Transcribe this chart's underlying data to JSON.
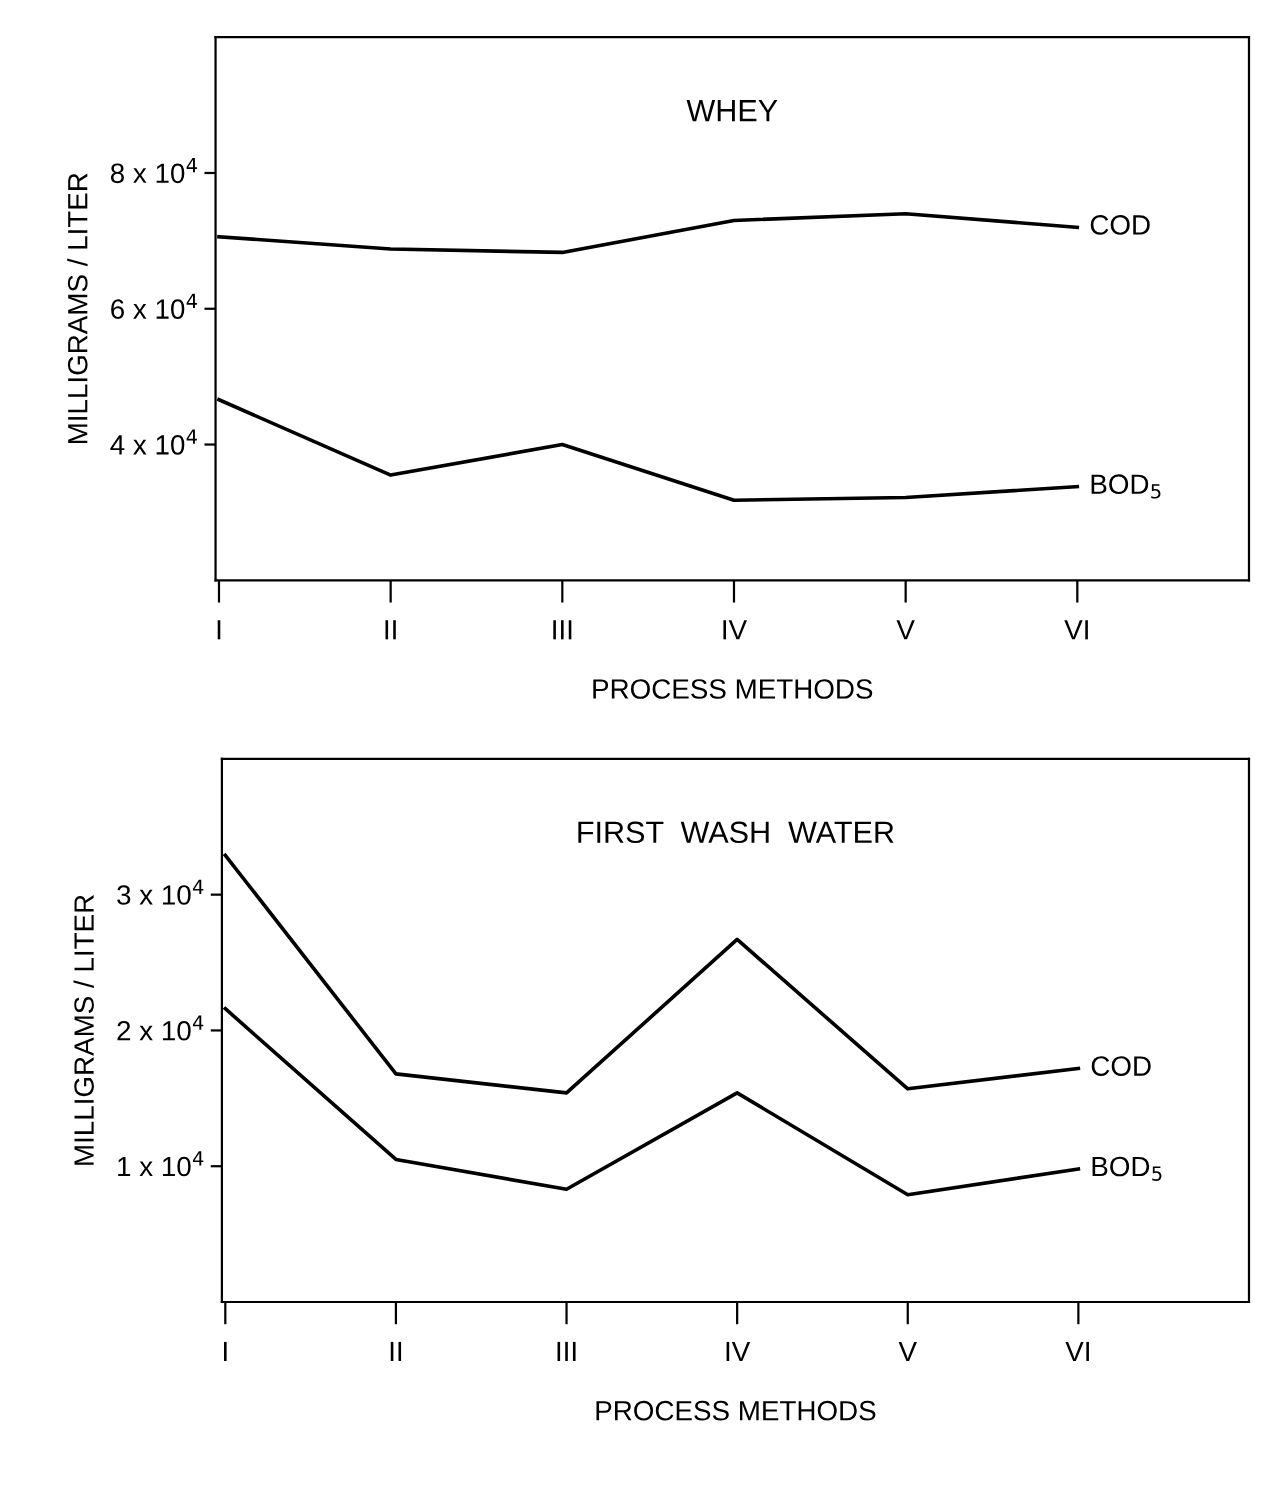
{
  "chart_data": [
    {
      "type": "line",
      "title": "WHEY",
      "xlabel": "PROCESS METHODS",
      "ylabel": "MILLIGRAMS / LITER",
      "categories": [
        "I",
        "II",
        "III",
        "IV",
        "V",
        "VI"
      ],
      "series": [
        {
          "name": "COD",
          "color": "#000000",
          "values": [
            70600,
            68800,
            68300,
            73000,
            74000,
            72000
          ]
        },
        {
          "name": "BOD$_{5}$",
          "color": "#000000",
          "values": [
            46600,
            35500,
            40000,
            31800,
            32200,
            33800
          ]
        }
      ],
      "ylim": [
        20000,
        100000
      ],
      "yticks": [
        {
          "value": 40000,
          "label": "4 x 10$^{4}$"
        },
        {
          "value": 60000,
          "label": "6 x 10$^{4}$"
        },
        {
          "value": 80000,
          "label": "8 x 10$^{4}$"
        }
      ],
      "grid": false,
      "legend": false,
      "marker": "none",
      "line_style": "solid"
    },
    {
      "type": "line",
      "title": "FIRST  WASH  WATER",
      "xlabel": "PROCESS METHODS",
      "ylabel": "MILLIGRAMS / LITER",
      "categories": [
        "I",
        "II",
        "III",
        "IV",
        "V",
        "VI"
      ],
      "series": [
        {
          "name": "COD",
          "color": "#000000",
          "values": [
            32900,
            16800,
            15400,
            26700,
            15700,
            17200
          ]
        },
        {
          "name": "BOD$_{5}$",
          "color": "#000000",
          "values": [
            21600,
            10500,
            8300,
            15400,
            7900,
            9800
          ]
        }
      ],
      "ylim": [
        0,
        40000
      ],
      "yticks": [
        {
          "value": 10000,
          "label": "1 x 10$^{4}$"
        },
        {
          "value": 20000,
          "label": "2 x 10$^{4}$"
        },
        {
          "value": 30000,
          "label": "3 x 10$^{4}$"
        }
      ],
      "grid": false,
      "legend": false,
      "marker": "none",
      "line_style": "solid"
    }
  ]
}
